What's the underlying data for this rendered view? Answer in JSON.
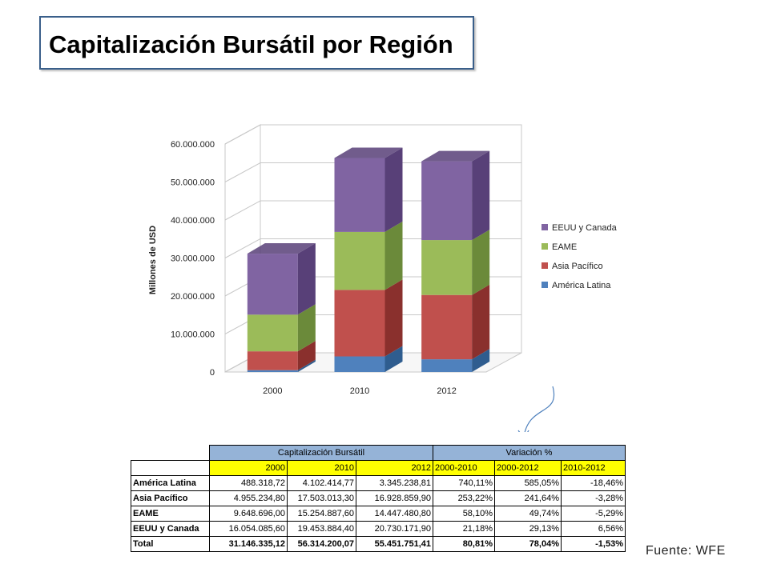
{
  "title": "Capitalización Bursátil por Región",
  "source": "Fuente: WFE",
  "chart_data": {
    "type": "bar",
    "stacked": true,
    "three_d": true,
    "categories": [
      "2000",
      "2010",
      "2012"
    ],
    "ylabel": "Millones de USD",
    "ylim": [
      0,
      60000000
    ],
    "yticks": [
      "0",
      "10.000.000",
      "20.000.000",
      "30.000.000",
      "40.000.000",
      "50.000.000",
      "60.000.000"
    ],
    "legend_position": "right",
    "series": [
      {
        "name": "América Latina",
        "color": "#4f81bd",
        "side": "#2f5d8f",
        "values": [
          488318.72,
          4102414.77,
          3345238.81
        ]
      },
      {
        "name": "Asia Pacífico",
        "color": "#c0504d",
        "side": "#8a302d",
        "values": [
          4955234.8,
          17503013.3,
          16928859.9
        ]
      },
      {
        "name": "EAME",
        "color": "#9bbb59",
        "side": "#6b8a3a",
        "values": [
          9648696.0,
          15254887.6,
          14447480.8
        ]
      },
      {
        "name": "EEUU y Canada",
        "color": "#8064a2",
        "side": "#584078",
        "values": [
          16054085.6,
          19453884.4,
          20730171.9
        ]
      }
    ]
  },
  "table": {
    "group_headers": [
      "Capitalización Bursátil",
      "Variación %"
    ],
    "columns": [
      "2000",
      "2010",
      "2012",
      "2000-2010",
      "2000-2012",
      "2010-2012"
    ],
    "rows": [
      {
        "label": "América Latina",
        "cells": [
          "488.318,72",
          "4.102.414,77",
          "3.345.238,81",
          "740,11%",
          "585,05%",
          "-18,46%"
        ]
      },
      {
        "label": "Asia Pacífico",
        "cells": [
          "4.955.234,80",
          "17.503.013,30",
          "16.928.859,90",
          "253,22%",
          "241,64%",
          "-3,28%"
        ]
      },
      {
        "label": "EAME",
        "cells": [
          "9.648.696,00",
          "15.254.887,60",
          "14.447.480,80",
          "58,10%",
          "49,74%",
          "-5,29%"
        ]
      },
      {
        "label": "EEUU y Canada",
        "cells": [
          "16.054.085,60",
          "19.453.884,40",
          "20.730.171,90",
          "21,18%",
          "29,13%",
          "6,56%"
        ]
      },
      {
        "label": "Total",
        "cells": [
          "31.146.335,12",
          "56.314.200,07",
          "55.451.751,41",
          "80,81%",
          "78,04%",
          "-1,53%"
        ]
      }
    ]
  }
}
